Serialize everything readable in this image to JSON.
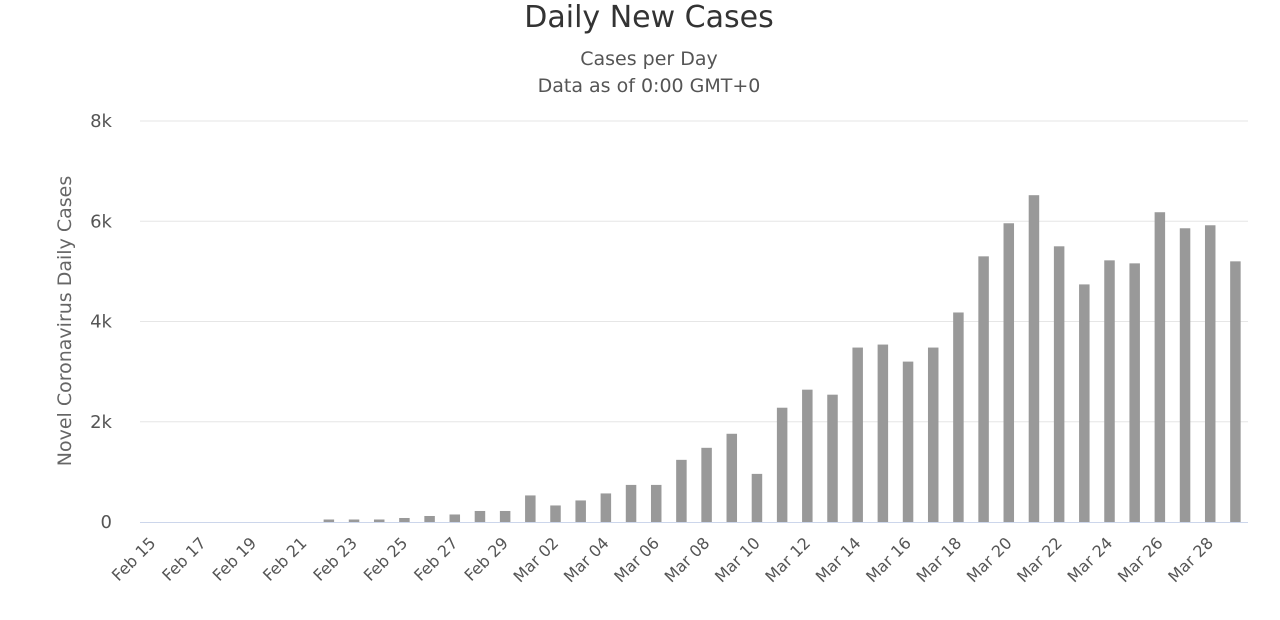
{
  "title": "Daily New Cases",
  "subtitle": "Cases per Day",
  "subtitle2": "Data as of 0:00 GMT+0",
  "colors": {
    "bar": "#999999",
    "grid": "#e6e6e6",
    "axis": "#ccd6eb"
  },
  "chart_data": {
    "type": "bar",
    "ylabel": "Novel Coronavirus Daily Cases",
    "ylim": [
      0,
      8000
    ],
    "yticks": [
      0,
      2000,
      4000,
      6000,
      8000
    ],
    "ytick_labels": [
      "0",
      "2k",
      "4k",
      "6k",
      "8k"
    ],
    "grid": true,
    "categories": [
      "Feb 15",
      "Feb 16",
      "Feb 17",
      "Feb 18",
      "Feb 19",
      "Feb 20",
      "Feb 21",
      "Feb 22",
      "Feb 23",
      "Feb 24",
      "Feb 25",
      "Feb 26",
      "Feb 27",
      "Feb 28",
      "Feb 29",
      "Mar 01",
      "Mar 02",
      "Mar 03",
      "Mar 04",
      "Mar 05",
      "Mar 06",
      "Mar 07",
      "Mar 08",
      "Mar 09",
      "Mar 10",
      "Mar 11",
      "Mar 12",
      "Mar 13",
      "Mar 14",
      "Mar 15",
      "Mar 16",
      "Mar 17",
      "Mar 18",
      "Mar 19",
      "Mar 20",
      "Mar 21",
      "Mar 22",
      "Mar 23",
      "Mar 24",
      "Mar 25",
      "Mar 26",
      "Mar 27",
      "Mar 28",
      "Mar 29"
    ],
    "xtick_labels": [
      "Feb 15",
      "Feb 17",
      "Feb 19",
      "Feb 21",
      "Feb 23",
      "Feb 25",
      "Feb 27",
      "Feb 29",
      "Mar 02",
      "Mar 04",
      "Mar 06",
      "Mar 08",
      "Mar 10",
      "Mar 12",
      "Mar 14",
      "Mar 16",
      "Mar 18",
      "Mar 20",
      "Mar 22",
      "Mar 24",
      "Mar 26",
      "Mar 28"
    ],
    "values": [
      0,
      0,
      0,
      0,
      0,
      0,
      0,
      50,
      50,
      50,
      80,
      120,
      150,
      220,
      220,
      530,
      330,
      430,
      570,
      740,
      740,
      1240,
      1480,
      1760,
      960,
      2280,
      2640,
      2540,
      3480,
      3540,
      3200,
      3480,
      4180,
      5300,
      5960,
      6520,
      5500,
      4740,
      5220,
      5160,
      6180,
      5860,
      5920,
      5200
    ]
  }
}
